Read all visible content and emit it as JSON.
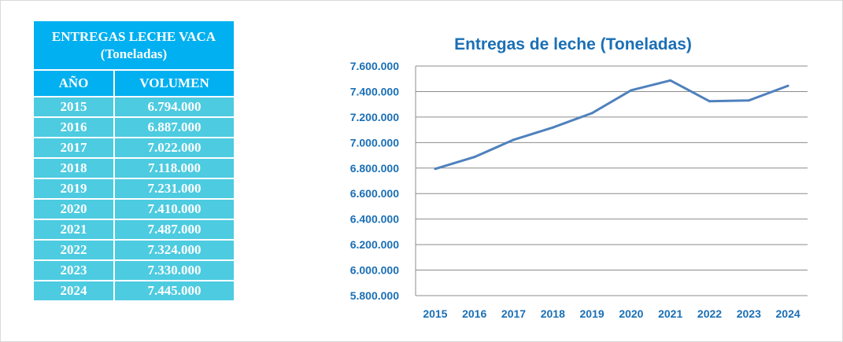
{
  "table": {
    "title_line1": "ENTREGAS LECHE VACA",
    "title_line2": "(Toneladas)",
    "col_year": "AÑO",
    "col_volume": "VOLUMEN",
    "rows": [
      {
        "year": "2015",
        "volume": "6.794.000"
      },
      {
        "year": "2016",
        "volume": "6.887.000"
      },
      {
        "year": "2017",
        "volume": "7.022.000"
      },
      {
        "year": "2018",
        "volume": "7.118.000"
      },
      {
        "year": "2019",
        "volume": "7.231.000"
      },
      {
        "year": "2020",
        "volume": "7.410.000"
      },
      {
        "year": "2021",
        "volume": "7.487.000"
      },
      {
        "year": "2022",
        "volume": "7.324.000"
      },
      {
        "year": "2023",
        "volume": "7.330.000"
      },
      {
        "year": "2024",
        "volume": "7.445.000"
      }
    ]
  },
  "chart_data": {
    "type": "line",
    "title": "Entregas de leche (Toneladas)",
    "xlabel": "",
    "ylabel": "",
    "categories": [
      "2015",
      "2016",
      "2017",
      "2018",
      "2019",
      "2020",
      "2021",
      "2022",
      "2023",
      "2024"
    ],
    "series": [
      {
        "values": [
          6794000,
          6887000,
          7022000,
          7118000,
          7231000,
          7410000,
          7487000,
          7324000,
          7330000,
          7445000
        ]
      }
    ],
    "ylim": [
      5800000,
      7600000
    ],
    "yticks": [
      5800000,
      6000000,
      6200000,
      6400000,
      6600000,
      6800000,
      7000000,
      7200000,
      7400000,
      7600000
    ],
    "ytick_labels": [
      "5.800.000",
      "6.000.000",
      "6.200.000",
      "6.400.000",
      "6.600.000",
      "6.800.000",
      "7.000.000",
      "7.200.000",
      "7.400.000",
      "7.600.000"
    ],
    "grid": true,
    "legend": "none",
    "line_color": "#4f81bd",
    "text_color": "#1a6fb5"
  }
}
